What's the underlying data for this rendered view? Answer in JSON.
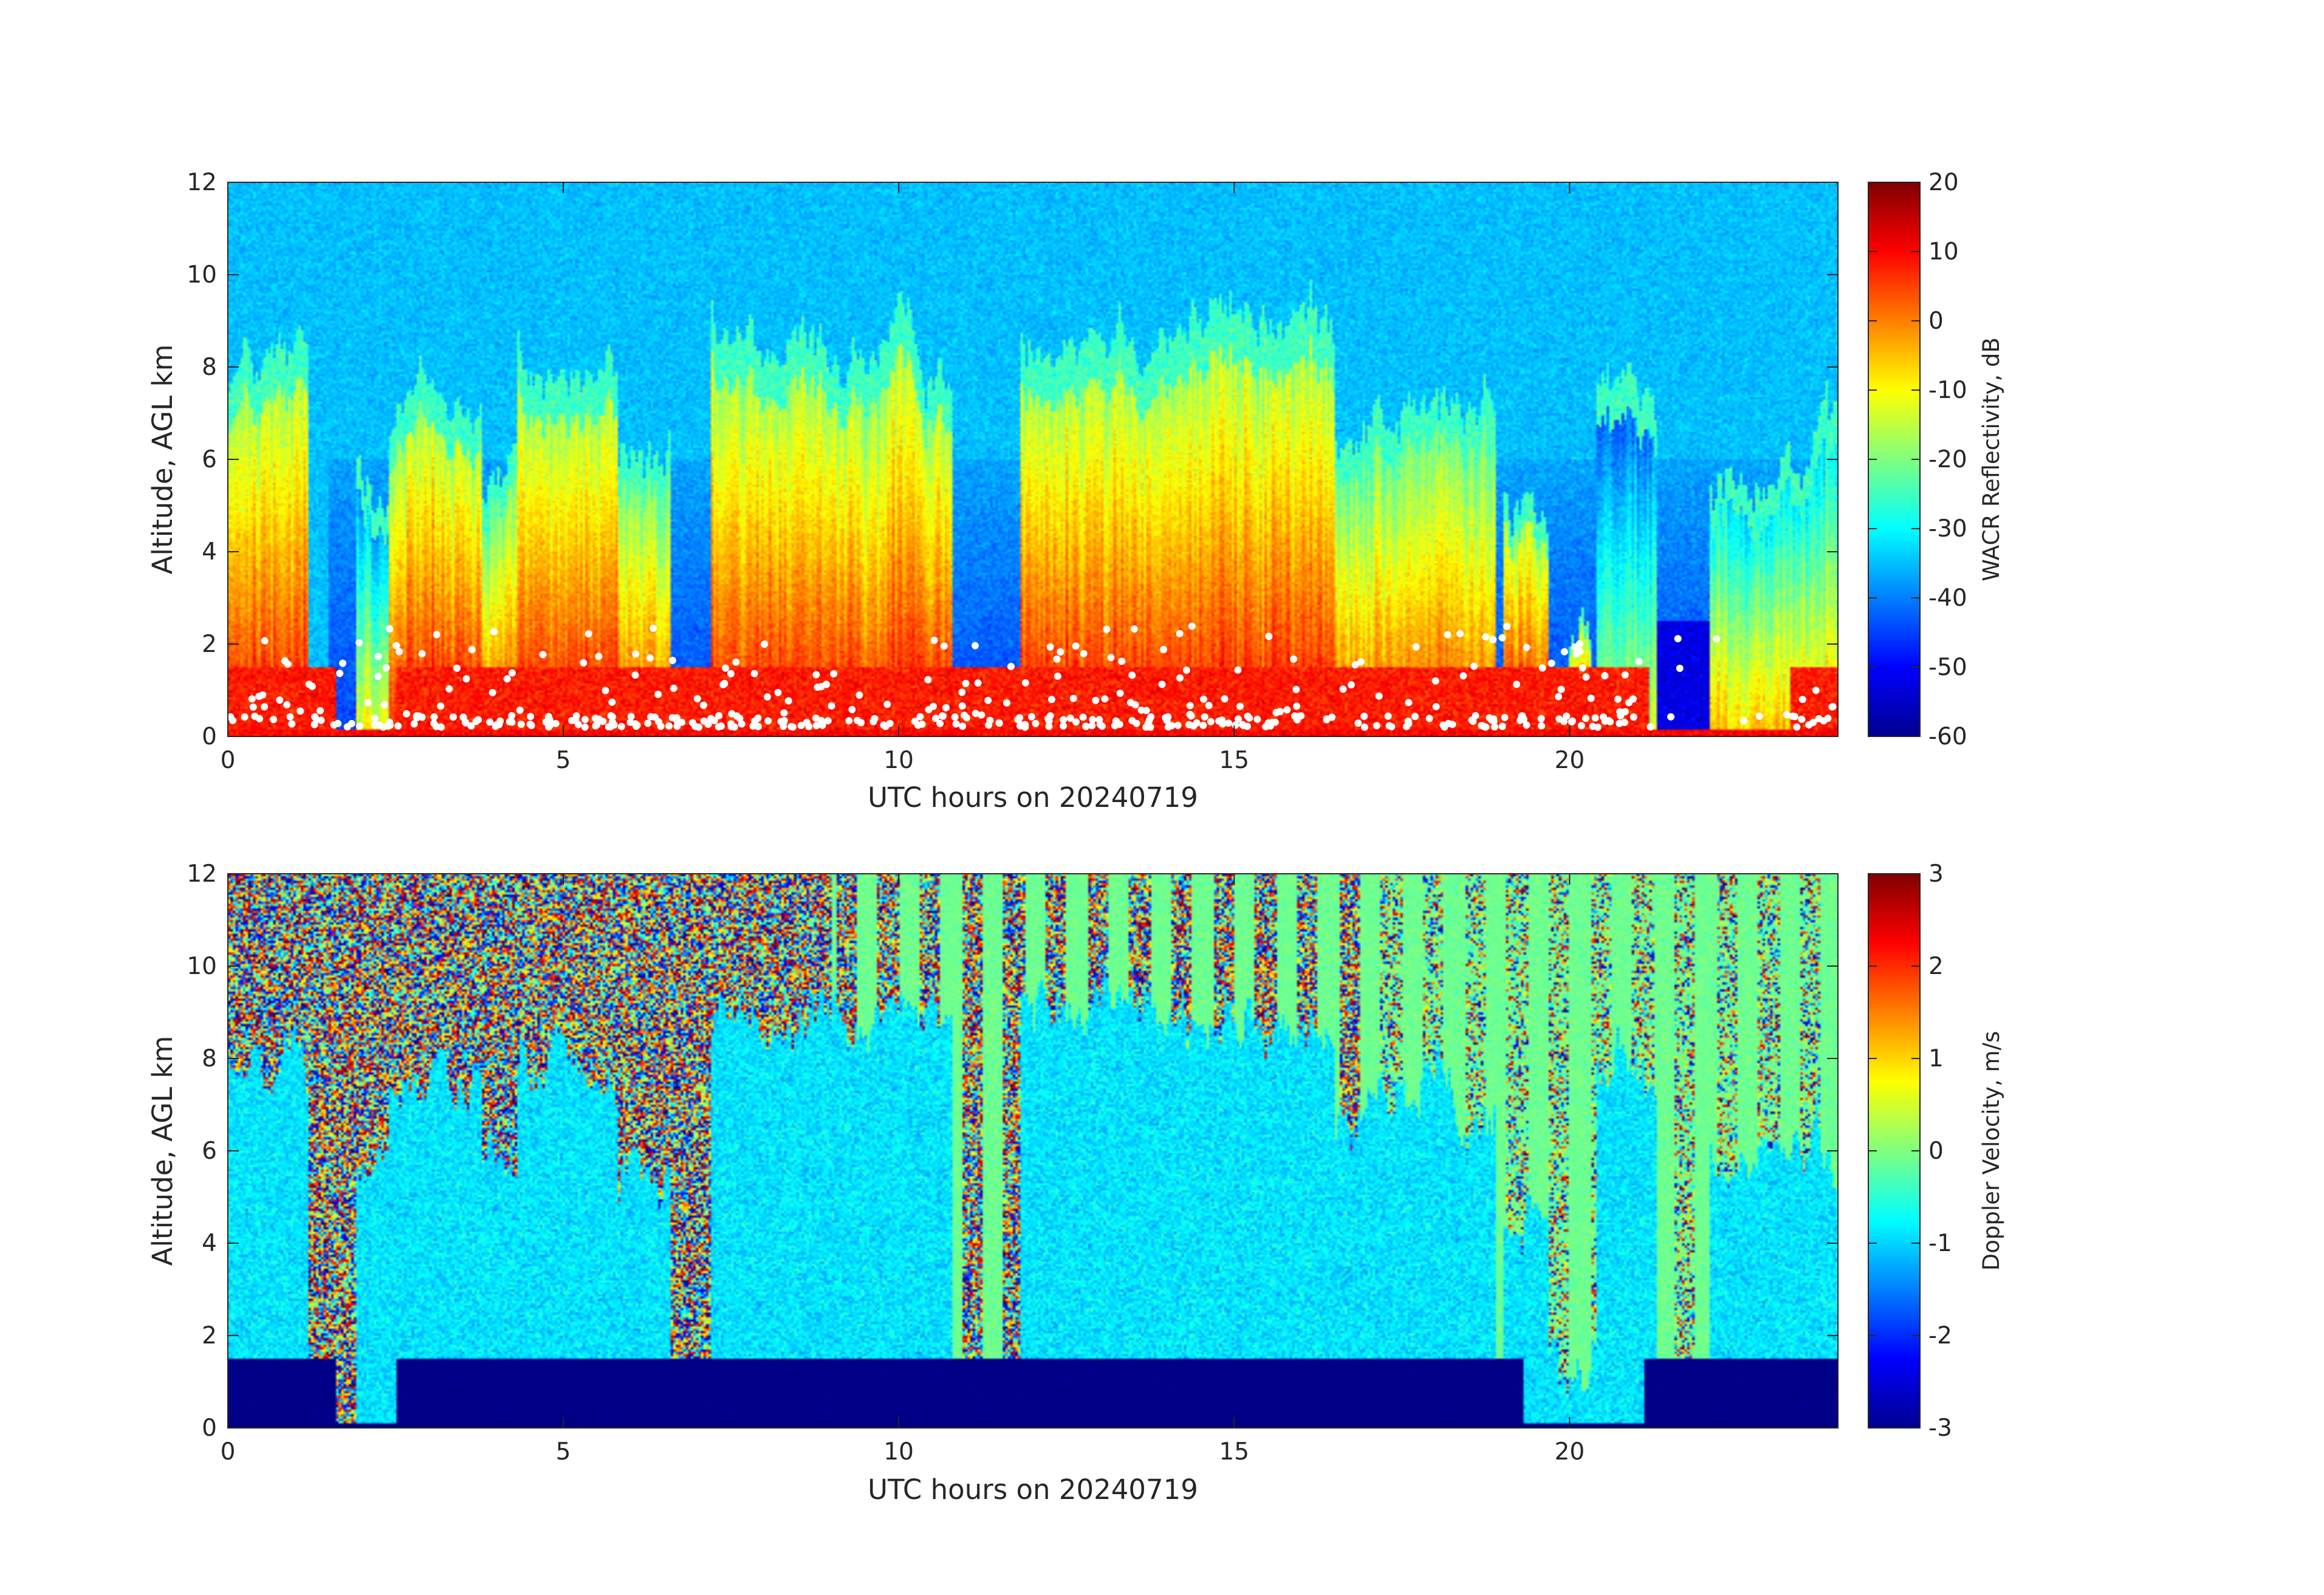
{
  "chart_data": [
    {
      "type": "heatmap",
      "panel": "top",
      "xlabel": "UTC hours on 20240719",
      "ylabel": "Altitude, AGL km",
      "xlim": [
        0,
        24
      ],
      "ylim": [
        0,
        12
      ],
      "xticks": [
        0,
        5,
        10,
        15,
        20
      ],
      "yticks": [
        0,
        2,
        4,
        6,
        8,
        10,
        12
      ],
      "colorbar": {
        "label": "WACR Reflectivity, dB",
        "range": [
          -60,
          20
        ],
        "ticks": [
          20,
          10,
          0,
          -10,
          -20,
          -30,
          -40,
          -50,
          -60
        ],
        "colormap": "jet"
      },
      "background_value": -35,
      "clear_air_value_below_6km": -45,
      "cloud_regions": [
        {
          "x": [
            0.0,
            1.2
          ],
          "top": 8.0,
          "core": 5
        },
        {
          "x": [
            1.9,
            2.4
          ],
          "top": 6.0,
          "core": -15
        },
        {
          "x": [
            2.4,
            3.8
          ],
          "top": 7.3,
          "core": 5
        },
        {
          "x": [
            3.8,
            4.3
          ],
          "top": 5.5,
          "core": 0
        },
        {
          "x": [
            4.3,
            5.8
          ],
          "top": 7.8,
          "core": 5
        },
        {
          "x": [
            5.8,
            6.6
          ],
          "top": 6.0,
          "core": 0
        },
        {
          "x": [
            7.2,
            10.8
          ],
          "top": 8.3,
          "core": 5
        },
        {
          "x": [
            11.8,
            16.5
          ],
          "top": 9.0,
          "core": 5
        },
        {
          "x": [
            16.5,
            18.9
          ],
          "top": 7.0,
          "core": 0
        },
        {
          "x": [
            19.0,
            19.7
          ],
          "top": 5.0,
          "core": 5
        },
        {
          "x": [
            19.7,
            21.0
          ],
          "top": 1.5,
          "core": 5
        },
        {
          "x": [
            20.4,
            21.3
          ],
          "top": 7.5,
          "core": -20
        },
        {
          "x": [
            22.1,
            24.0
          ],
          "top": 6.0,
          "core": -10
        }
      ],
      "boundary_layer": {
        "top_km": 1.5,
        "value": 12
      },
      "overlay": {
        "marker": "white dots",
        "altitude_range_km": [
          0.2,
          2.4
        ]
      }
    },
    {
      "type": "heatmap",
      "panel": "bottom",
      "xlabel": "UTC hours on 20240719",
      "ylabel": "Altitude, AGL km",
      "xlim": [
        0,
        24
      ],
      "ylim": [
        0,
        12
      ],
      "xticks": [
        0,
        5,
        10,
        15,
        20
      ],
      "yticks": [
        0,
        2,
        4,
        6,
        8,
        10,
        12
      ],
      "colorbar": {
        "label": "Doppler Velocity, m/s",
        "range": [
          -3,
          3
        ],
        "ticks": [
          3,
          2,
          1,
          0,
          -1,
          -2,
          -3
        ],
        "colormap": "jet"
      },
      "noise_region": "random velocities above cloud tops",
      "cloud_velocity_m_s": -0.9,
      "precipitation_layer": {
        "top_km": 1.5,
        "velocity_m_s": -3
      },
      "clear_air_value_after_17h": -0.1
    }
  ]
}
